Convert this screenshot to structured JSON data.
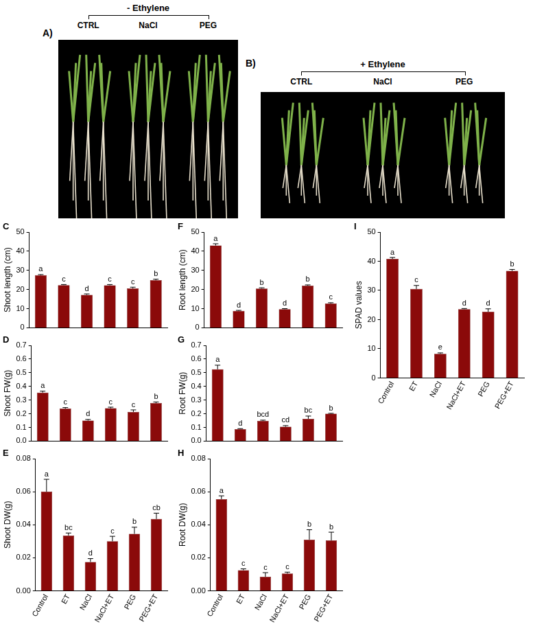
{
  "photos": [
    {
      "panel": "A)",
      "heading": "- Ethylene",
      "labels": [
        "CTRL",
        "NaCl",
        "PEG"
      ]
    },
    {
      "panel": "B)",
      "heading": "+ Ethylene",
      "labels": [
        "CTRL",
        "NaCl",
        "PEG"
      ]
    }
  ],
  "chart_data": [
    {
      "panel": "C",
      "type": "bar",
      "y_label": "Shoot length (cm)",
      "categories": [
        "Control",
        "ET",
        "NaCl",
        "NaCl+ET",
        "PEG",
        "PEG+ET"
      ],
      "values": [
        27.5,
        22.3,
        17.2,
        22.2,
        20.6,
        24.9
      ],
      "errors": [
        0.3,
        0.3,
        0.5,
        0.4,
        0.6,
        0.5
      ],
      "letters": [
        "a",
        "c",
        "d",
        "c",
        "c",
        "b"
      ],
      "color": "#8b0a0a",
      "ylim": [
        0,
        50
      ],
      "yticks": [
        0,
        10,
        20,
        30,
        40,
        50
      ],
      "grid": false,
      "tick_labels": "y"
    },
    {
      "panel": "D",
      "type": "bar",
      "y_label": "Shoot FW(g)",
      "categories": [
        "Control",
        "ET",
        "NaCl",
        "NaCl+ET",
        "PEG",
        "PEG+ET"
      ],
      "values": [
        0.355,
        0.238,
        0.15,
        0.24,
        0.213,
        0.278
      ],
      "errors": [
        0.01,
        0.007,
        0.008,
        0.008,
        0.015,
        0.008
      ],
      "letters": [
        "a",
        "c",
        "d",
        "c",
        "c",
        "b"
      ],
      "color": "#8b0a0a",
      "ylim": [
        0,
        0.7
      ],
      "yticks": [
        {
          "value": 0,
          "label": "0.0"
        },
        0.1,
        0.2,
        0.3,
        0.4,
        0.5,
        0.6,
        0.7
      ],
      "grid": false,
      "tick_labels": "y"
    },
    {
      "panel": "E",
      "type": "bar",
      "y_label": "Shoot DW(g)",
      "categories": [
        "Control",
        "ET",
        "NaCl",
        "NaCl+ET",
        "PEG",
        "PEG+ET"
      ],
      "values": [
        0.06,
        0.0335,
        0.0175,
        0.03,
        0.0345,
        0.0435
      ],
      "errors": [
        0.0075,
        0.0015,
        0.002,
        0.003,
        0.004,
        0.0035
      ],
      "letters": [
        "a",
        "bc",
        "d",
        "c",
        "b",
        "cb"
      ],
      "color": "#8b0a0a",
      "ylim": [
        0,
        0.08
      ],
      "yticks": [
        {
          "value": 0,
          "label": "0.00"
        },
        0.02,
        0.04,
        0.06,
        0.08
      ],
      "grid": false
    },
    {
      "panel": "F",
      "type": "bar",
      "y_label": "Root length (cm)",
      "categories": [
        "Control",
        "ET",
        "NaCl",
        "NaCl+ET",
        "PEG",
        "PEG+ET"
      ],
      "values": [
        43,
        8.8,
        20.5,
        9.7,
        22.0,
        12.7
      ],
      "errors": [
        0.9,
        0.3,
        0.4,
        0.3,
        0.4,
        0.4
      ],
      "letters": [
        "a",
        "d",
        "b",
        "d",
        "b",
        "c"
      ],
      "color": "#8b0a0a",
      "ylim": [
        0,
        50
      ],
      "yticks": [
        0,
        10,
        20,
        30,
        40,
        50
      ],
      "grid": false,
      "tick_labels": "y"
    },
    {
      "panel": "G",
      "type": "bar",
      "y_label": "Root FW(g)",
      "categories": [
        "Control",
        "ET",
        "NaCl",
        "NaCl+ET",
        "PEG",
        "PEG+ET"
      ],
      "values": [
        0.525,
        0.088,
        0.148,
        0.105,
        0.163,
        0.2
      ],
      "errors": [
        0.03,
        0.003,
        0.005,
        0.008,
        0.02,
        0.003
      ],
      "letters": [
        "a",
        "d",
        "bcd",
        "cd",
        "bc",
        "b"
      ],
      "color": "#8b0a0a",
      "ylim": [
        0,
        0.7
      ],
      "yticks": [
        {
          "value": 0,
          "label": "0.0"
        },
        0.1,
        0.2,
        0.3,
        0.4,
        0.5,
        0.6,
        0.7
      ],
      "grid": false,
      "tick_labels": "y"
    },
    {
      "panel": "H",
      "type": "bar",
      "y_label": "Root DW(g)",
      "categories": [
        "Control",
        "ET",
        "NaCl",
        "NaCl+ET",
        "PEG",
        "PEG+ET"
      ],
      "values": [
        0.0555,
        0.0125,
        0.0085,
        0.0105,
        0.031,
        0.0305
      ],
      "errors": [
        0.002,
        0.0008,
        0.0025,
        0.0008,
        0.006,
        0.005
      ],
      "letters": [
        "a",
        "c",
        "c",
        "c",
        "b",
        "b"
      ],
      "color": "#8b0a0a",
      "ylim": [
        0,
        0.08
      ],
      "yticks": [
        {
          "value": 0,
          "label": "0.00"
        },
        0.02,
        0.04,
        0.06,
        0.08
      ],
      "grid": false
    },
    {
      "panel": "I",
      "type": "bar",
      "y_label": "SPAD values",
      "categories": [
        "Control",
        "ET",
        "NaCl",
        "NaCl+ET",
        "PEG",
        "PEG+ET"
      ],
      "values": [
        40.8,
        30.5,
        8.3,
        23.6,
        22.7,
        36.7
      ],
      "errors": [
        0.5,
        1.2,
        0.3,
        0.2,
        1.0,
        0.5
      ],
      "letters": [
        "a",
        "c",
        "e",
        "d",
        "d",
        "b"
      ],
      "color": "#8b0a0a",
      "ylim": [
        0,
        50
      ],
      "yticks": [
        0,
        10,
        20,
        30,
        40,
        50
      ],
      "grid": false
    }
  ]
}
